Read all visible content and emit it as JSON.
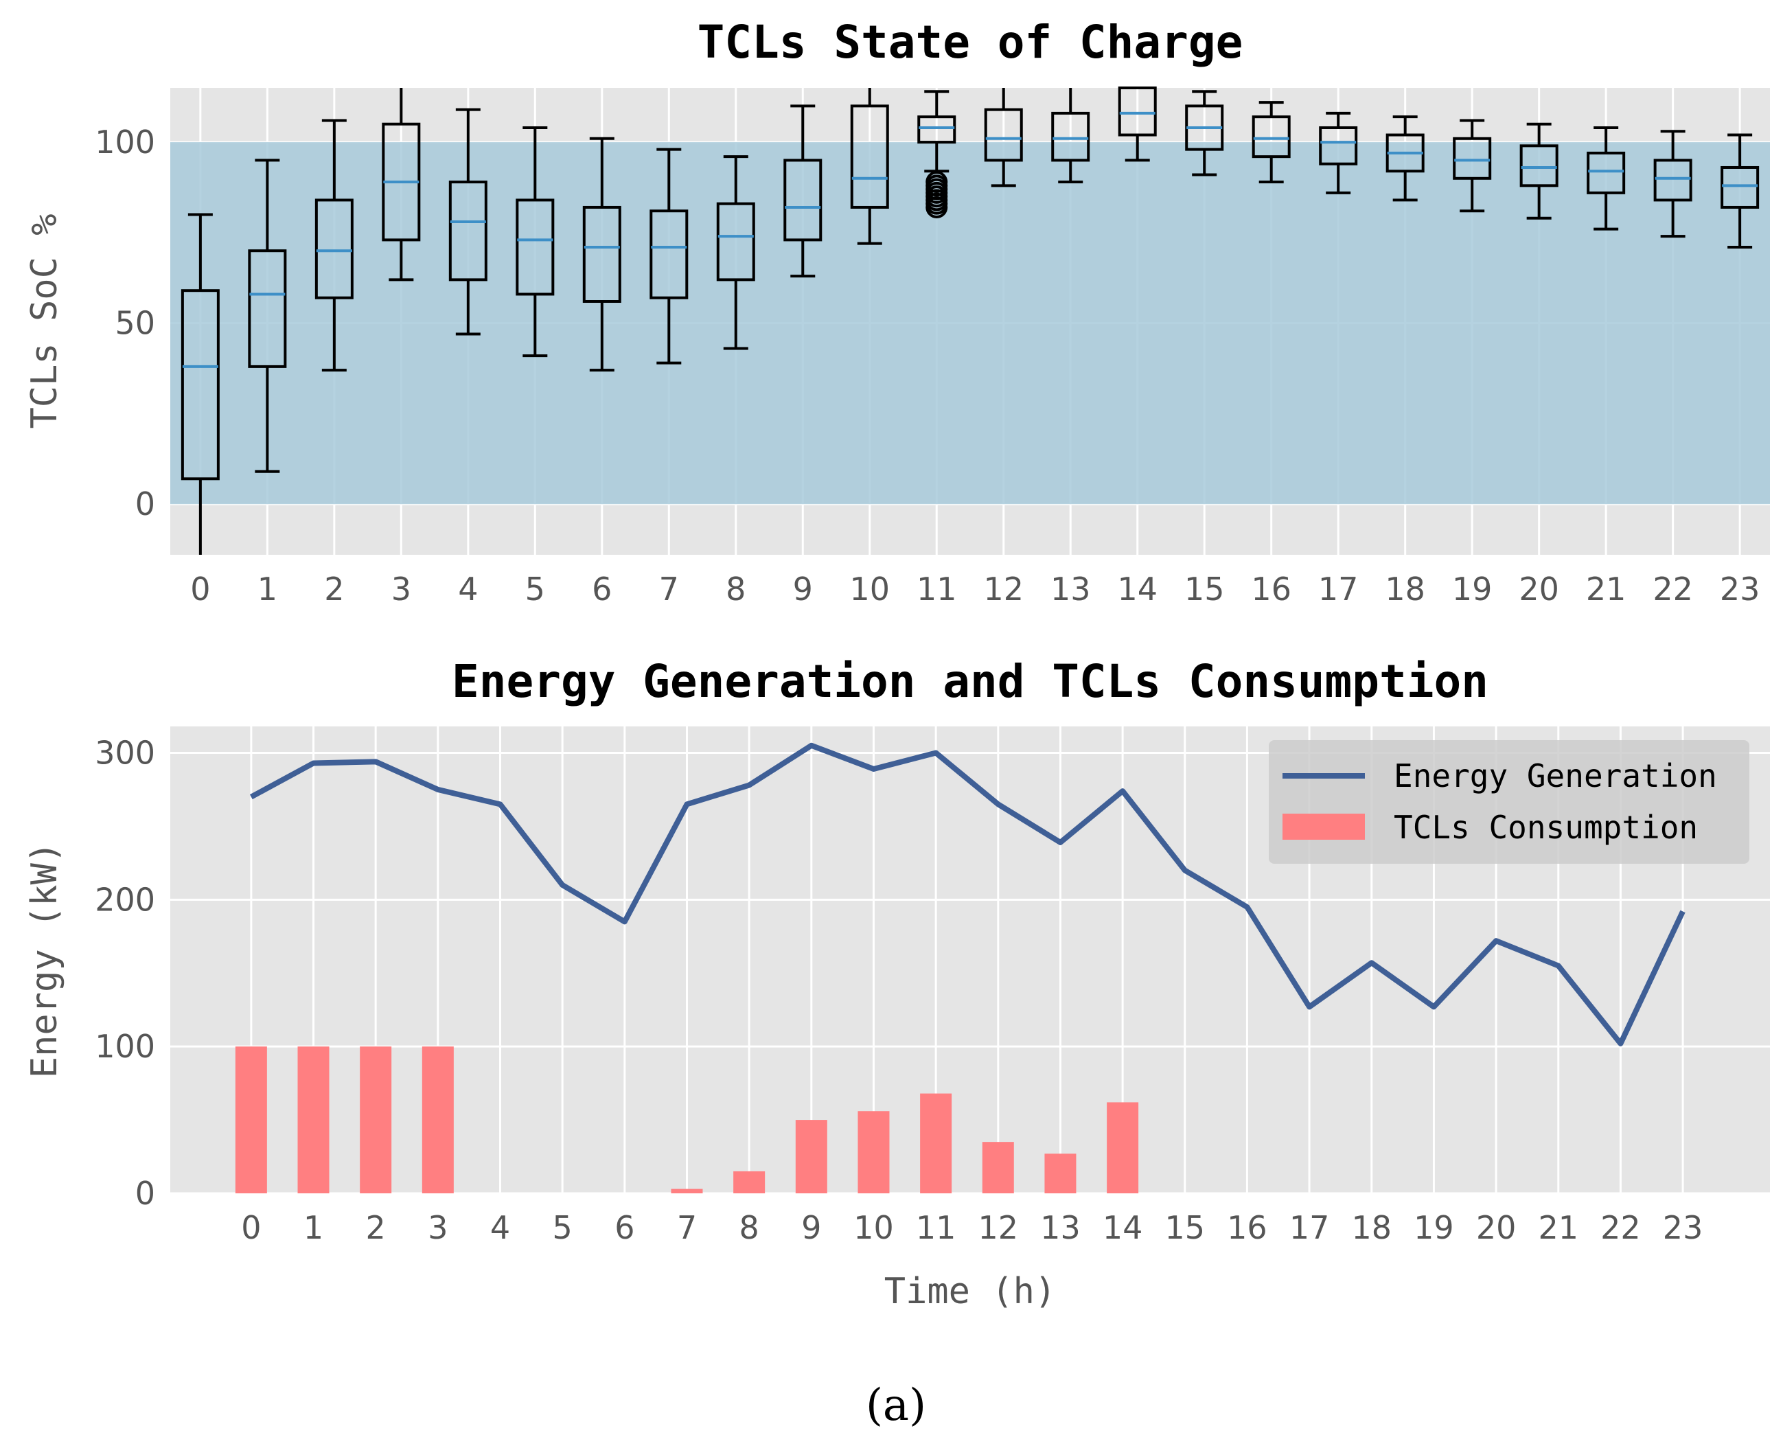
{
  "caption": "(a)",
  "colors": {
    "panel_bg": "#E5E5E5",
    "grid": "#FFFFFF",
    "band": "#A8CADB",
    "median": "#3D8FC7",
    "line": "#3F5F96",
    "bar": "#FF7F81",
    "box": "#000000"
  },
  "chart_data": [
    {
      "type": "box",
      "title": "TCLs State of Charge",
      "xlabel": "",
      "ylabel": "TCLs SoC %",
      "xlim": [
        -0.45,
        23.45
      ],
      "ylim": [
        -14,
        115
      ],
      "yticks": [
        0,
        50,
        100
      ],
      "ytick_labels": [
        "0",
        "50",
        "100"
      ],
      "band": [
        0,
        100
      ],
      "grid": true,
      "categories": [
        "0",
        "1",
        "2",
        "3",
        "4",
        "5",
        "6",
        "7",
        "8",
        "9",
        "10",
        "11",
        "12",
        "13",
        "14",
        "15",
        "16",
        "17",
        "18",
        "19",
        "20",
        "21",
        "22",
        "23"
      ],
      "boxes": [
        {
          "q1": 7,
          "median": 38,
          "q3": 59,
          "whislo": -15,
          "whishi": 80
        },
        {
          "q1": 38,
          "median": 58,
          "q3": 70,
          "whislo": 9,
          "whishi": 95
        },
        {
          "q1": 57,
          "median": 70,
          "q3": 84,
          "whislo": 37,
          "whishi": 106
        },
        {
          "q1": 73,
          "median": 89,
          "q3": 105,
          "whislo": 62,
          "whishi": 116
        },
        {
          "q1": 62,
          "median": 78,
          "q3": 89,
          "whislo": 47,
          "whishi": 109
        },
        {
          "q1": 58,
          "median": 73,
          "q3": 84,
          "whislo": 41,
          "whishi": 104
        },
        {
          "q1": 56,
          "median": 71,
          "q3": 82,
          "whislo": 37,
          "whishi": 101
        },
        {
          "q1": 57,
          "median": 71,
          "q3": 81,
          "whislo": 39,
          "whishi": 98
        },
        {
          "q1": 62,
          "median": 74,
          "q3": 83,
          "whislo": 43,
          "whishi": 96
        },
        {
          "q1": 73,
          "median": 82,
          "q3": 95,
          "whislo": 63,
          "whishi": 110
        },
        {
          "q1": 82,
          "median": 90,
          "q3": 110,
          "whislo": 72,
          "whishi": 116
        },
        {
          "q1": 100,
          "median": 104,
          "q3": 107,
          "whislo": 92,
          "whishi": 114,
          "fliers": [
            82,
            83,
            84,
            85,
            86,
            87,
            88,
            89
          ]
        },
        {
          "q1": 95,
          "median": 101,
          "q3": 109,
          "whislo": 88,
          "whishi": 116
        },
        {
          "q1": 95,
          "median": 101,
          "q3": 108,
          "whislo": 89,
          "whishi": 116
        },
        {
          "q1": 102,
          "median": 108,
          "q3": 116,
          "whislo": 95,
          "whishi": 116
        },
        {
          "q1": 98,
          "median": 104,
          "q3": 110,
          "whislo": 91,
          "whishi": 114
        },
        {
          "q1": 96,
          "median": 101,
          "q3": 107,
          "whislo": 89,
          "whishi": 111
        },
        {
          "q1": 94,
          "median": 100,
          "q3": 104,
          "whislo": 86,
          "whishi": 108
        },
        {
          "q1": 92,
          "median": 97,
          "q3": 102,
          "whislo": 84,
          "whishi": 107
        },
        {
          "q1": 90,
          "median": 95,
          "q3": 101,
          "whislo": 81,
          "whishi": 106
        },
        {
          "q1": 88,
          "median": 93,
          "q3": 99,
          "whislo": 79,
          "whishi": 105
        },
        {
          "q1": 86,
          "median": 92,
          "q3": 97,
          "whislo": 76,
          "whishi": 104
        },
        {
          "q1": 84,
          "median": 90,
          "q3": 95,
          "whislo": 74,
          "whishi": 103
        },
        {
          "q1": 82,
          "median": 88,
          "q3": 93,
          "whislo": 71,
          "whishi": 102
        }
      ]
    },
    {
      "type": "line+bar",
      "title": "Energy Generation and TCLs Consumption",
      "xlabel": "Time (h)",
      "ylabel": "Energy (kW)",
      "xlim": [
        -1.3,
        24.4
      ],
      "ylim": [
        0,
        318
      ],
      "yticks": [
        0,
        100,
        200,
        300
      ],
      "ytick_labels": [
        "0",
        "100",
        "200",
        "300"
      ],
      "grid": true,
      "legend_position": "top-right",
      "categories": [
        "0",
        "1",
        "2",
        "3",
        "4",
        "5",
        "6",
        "7",
        "8",
        "9",
        "10",
        "11",
        "12",
        "13",
        "14",
        "15",
        "16",
        "17",
        "18",
        "19",
        "20",
        "21",
        "22",
        "23"
      ],
      "series": [
        {
          "name": "Energy Generation",
          "type": "line",
          "values": [
            270,
            293,
            294,
            275,
            265,
            210,
            185,
            265,
            278,
            305,
            289,
            300,
            265,
            239,
            274,
            220,
            195,
            127,
            157,
            127,
            172,
            155,
            102,
            192
          ]
        },
        {
          "name": "TCLs Consumption",
          "type": "bar",
          "values": [
            100,
            100,
            100,
            100,
            0,
            0,
            0,
            3,
            15,
            50,
            56,
            68,
            35,
            27,
            62,
            0,
            0,
            0,
            0,
            0,
            0,
            0,
            0,
            0
          ]
        }
      ]
    }
  ]
}
